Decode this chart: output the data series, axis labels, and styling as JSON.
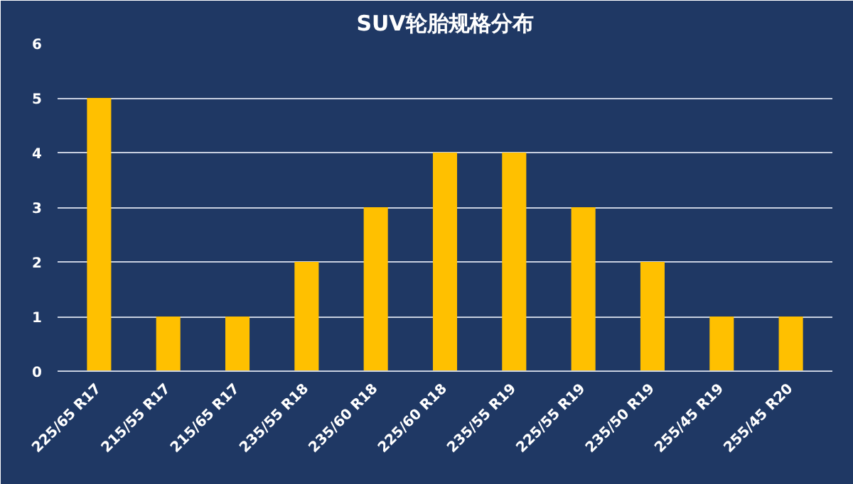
{
  "chart_data": {
    "type": "bar",
    "title": "SUV轮胎规格分布",
    "categories": [
      "225/65 R17",
      "215/55 R17",
      "215/65 R17",
      "235/55 R18",
      "235/60 R18",
      "225/60 R18",
      "235/55 R19",
      "225/55 R19",
      "235/50 R19",
      "255/45 R19",
      "255/45 R20"
    ],
    "values": [
      5,
      1,
      1,
      2,
      3,
      4,
      4,
      3,
      2,
      1,
      1
    ],
    "color": "#ffc000",
    "ylim": [
      0,
      6
    ],
    "yticks": [
      0,
      1,
      2,
      3,
      4,
      5,
      6
    ],
    "grid": "y"
  }
}
